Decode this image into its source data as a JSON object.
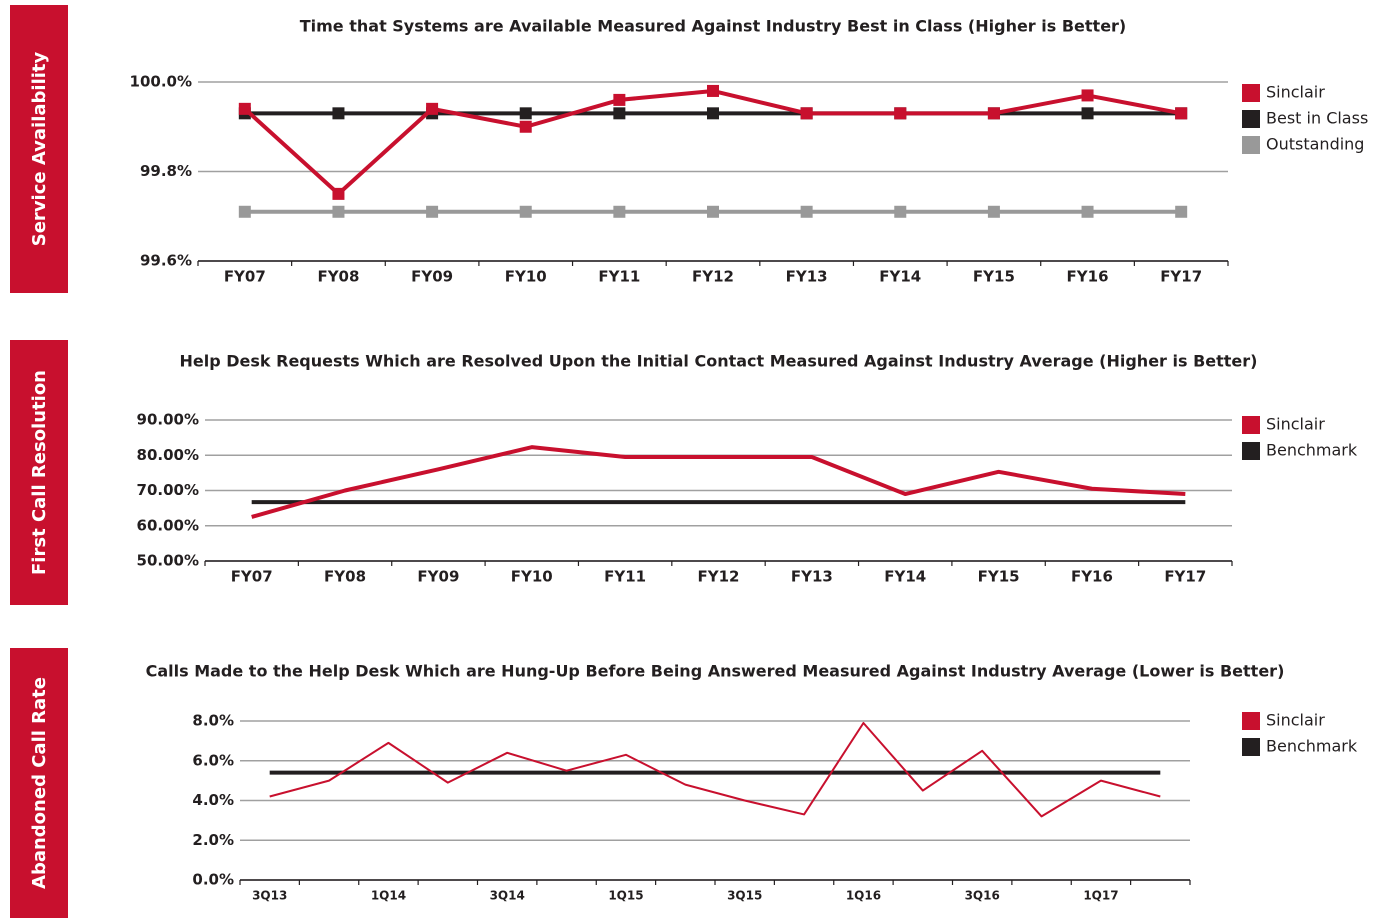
{
  "chart_data": [
    {
      "type": "line",
      "section": "Service Availability",
      "title": "Time that Systems are Available Measured Against Industry Best in Class (Higher is Better)",
      "categories": [
        "FY07",
        "FY08",
        "FY09",
        "FY10",
        "FY11",
        "FY12",
        "FY13",
        "FY14",
        "FY15",
        "FY16",
        "FY17"
      ],
      "series": [
        {
          "name": "Sinclair",
          "color": "#c8102e",
          "marker": "square",
          "line_width": 4,
          "values": [
            99.94,
            99.75,
            99.94,
            99.9,
            99.96,
            99.98,
            99.93,
            99.93,
            99.93,
            99.97,
            99.93
          ]
        },
        {
          "name": "Best in Class",
          "color": "#231f20",
          "marker": "square",
          "line_width": 4,
          "values": [
            99.93,
            99.93,
            99.93,
            99.93,
            99.93,
            99.93,
            99.93,
            99.93,
            99.93,
            99.93,
            99.93
          ]
        },
        {
          "name": "Outstanding",
          "color": "#999999",
          "marker": "square",
          "line_width": 4,
          "values": [
            99.71,
            99.71,
            99.71,
            99.71,
            99.71,
            99.71,
            99.71,
            99.71,
            99.71,
            99.71,
            99.71
          ]
        }
      ],
      "ylim": [
        99.6,
        100.0
      ],
      "yticks": [
        {
          "value": 99.6,
          "label": "99.6%"
        },
        {
          "value": 99.8,
          "label": "99.8%"
        },
        {
          "value": 100.0,
          "label": "100.0%"
        }
      ],
      "grid": true,
      "legend": "right"
    },
    {
      "type": "line",
      "section": "First Call Resolution",
      "title": "Help Desk Requests Which are Resolved Upon the Initial Contact Measured Against Industry Average (Higher is Better)",
      "categories": [
        "FY07",
        "FY08",
        "FY09",
        "FY10",
        "FY11",
        "FY12",
        "FY13",
        "FY14",
        "FY15",
        "FY16",
        "FY17"
      ],
      "series": [
        {
          "name": "Sinclair",
          "color": "#c8102e",
          "line_width": 4,
          "values": [
            62.5,
            70,
            76,
            82.3,
            79.5,
            79.5,
            79.5,
            69,
            75.3,
            70.5,
            69
          ]
        },
        {
          "name": "Benchmark",
          "color": "#231f20",
          "line_width": 4,
          "values": [
            66.7,
            66.7,
            66.7,
            66.7,
            66.7,
            66.7,
            66.7,
            66.7,
            66.7,
            66.7,
            66.7
          ]
        }
      ],
      "ylim": [
        50,
        90
      ],
      "yticks": [
        {
          "value": 50,
          "label": "50.00%"
        },
        {
          "value": 60,
          "label": "60.00%"
        },
        {
          "value": 70,
          "label": "70.00%"
        },
        {
          "value": 80,
          "label": "80.00%"
        },
        {
          "value": 90,
          "label": "90.00%"
        }
      ],
      "grid": true,
      "legend": "right"
    },
    {
      "type": "line",
      "section": "Abandoned Call Rate",
      "title": "Calls Made to the Help Desk Which are Hung-Up Before Being Answered Measured Against Industry Average (Lower is Better)",
      "categories": [
        "3Q13",
        null,
        "1Q14",
        null,
        "3Q14",
        null,
        "1Q15",
        null,
        "3Q15",
        null,
        "1Q16",
        null,
        "3Q16",
        null,
        "1Q17",
        null
      ],
      "series": [
        {
          "name": "Sinclair",
          "color": "#c8102e",
          "line_width": 2,
          "values": [
            4.2,
            5.0,
            6.9,
            4.9,
            6.4,
            5.5,
            6.3,
            4.8,
            4.0,
            3.3,
            7.9,
            4.5,
            6.5,
            3.2,
            5.0,
            4.2
          ]
        },
        {
          "name": "Benchmark",
          "color": "#231f20",
          "line_width": 4,
          "values": [
            5.4,
            5.4,
            5.4,
            5.4,
            5.4,
            5.4,
            5.4,
            5.4,
            5.4,
            5.4,
            5.4,
            5.4,
            5.4,
            5.4,
            5.4,
            5.4
          ]
        }
      ],
      "ylim": [
        0,
        8
      ],
      "yticks": [
        {
          "value": 0,
          "label": "0.0%"
        },
        {
          "value": 2,
          "label": "2.0%"
        },
        {
          "value": 4,
          "label": "4.0%"
        },
        {
          "value": 6,
          "label": "6.0%"
        },
        {
          "value": 8,
          "label": "8.0%"
        }
      ],
      "grid": true,
      "legend": "right"
    }
  ]
}
